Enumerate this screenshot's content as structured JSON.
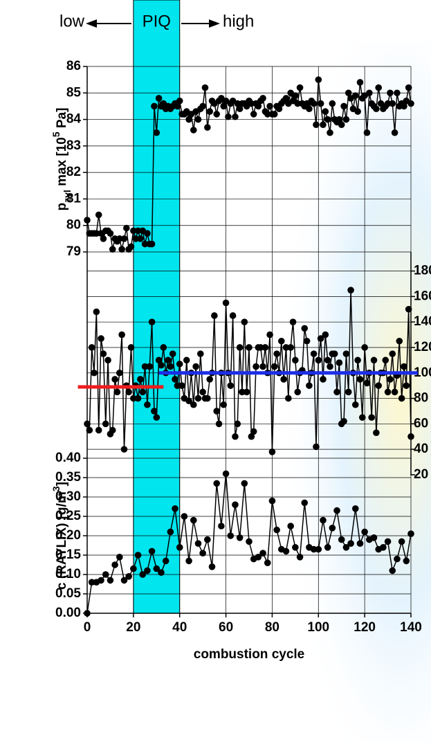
{
  "chart_data": [
    {
      "type": "line",
      "ylabel": [
        {
          "text": "p"
        },
        {
          "text": "zyl",
          "script": "sub"
        },
        {
          "text": " max [10"
        },
        {
          "text": "5",
          "script": "super"
        },
        {
          "text": " Pa]"
        }
      ],
      "annotations": [
        "low",
        "high"
      ],
      "highlight": {
        "x": [
          20,
          40
        ],
        "label": "PIQ",
        "color": "#00e5ee"
      },
      "xlim": [
        0,
        140
      ],
      "ylim": [
        79,
        86
      ],
      "yticks": [
        79,
        80,
        81,
        82,
        83,
        84,
        85,
        86
      ],
      "grid": true,
      "x": [
        0,
        1,
        2,
        3,
        4,
        5,
        6,
        7,
        8,
        9,
        10,
        11,
        12,
        13,
        14,
        15,
        16,
        17,
        18,
        19,
        20,
        21,
        22,
        23,
        24,
        25,
        26,
        27,
        28,
        29,
        30,
        31,
        32,
        33,
        34,
        35,
        36,
        37,
        38,
        39,
        40,
        41,
        42,
        43,
        44,
        45,
        46,
        47,
        48,
        49,
        50,
        51,
        52,
        53,
        54,
        55,
        56,
        57,
        58,
        59,
        60,
        61,
        62,
        63,
        64,
        65,
        66,
        67,
        68,
        69,
        70,
        71,
        72,
        73,
        74,
        75,
        76,
        77,
        78,
        79,
        80,
        81,
        82,
        83,
        84,
        85,
        86,
        87,
        88,
        89,
        90,
        91,
        92,
        93,
        94,
        95,
        96,
        97,
        98,
        99,
        100,
        101,
        102,
        103,
        104,
        105,
        106,
        107,
        108,
        109,
        110,
        111,
        112,
        113,
        114,
        115,
        116,
        117,
        118,
        119,
        120,
        121,
        122,
        123,
        124,
        125,
        126,
        127,
        128,
        129,
        130,
        131,
        132,
        133,
        134,
        135,
        136,
        137,
        138,
        139,
        140
      ],
      "series": [
        {
          "color": "#000000",
          "values": [
            80.2,
            79.7,
            79.7,
            79.7,
            79.7,
            80.4,
            79.7,
            79.5,
            79.8,
            79.8,
            79.7,
            79.1,
            79.5,
            79.4,
            79.5,
            79.1,
            79.5,
            79.9,
            79.1,
            79.2,
            79.8,
            79.5,
            79.8,
            79.5,
            79.8,
            79.3,
            79.7,
            79.3,
            79.3,
            84.5,
            83.5,
            84.8,
            84.5,
            84.6,
            84.4,
            84.5,
            84.4,
            84.5,
            84.6,
            84.5,
            84.7,
            84.2,
            84.2,
            84.3,
            84.0,
            84.2,
            83.6,
            84.3,
            84.0,
            84.4,
            84.5,
            85.2,
            83.7,
            84.3,
            84.7,
            84.6,
            84.2,
            84.7,
            84.8,
            84.5,
            84.7,
            84.1,
            84.6,
            84.7,
            84.1,
            84.6,
            84.4,
            84.6,
            84.6,
            84.5,
            84.7,
            84.6,
            84.2,
            84.6,
            84.5,
            84.7,
            84.8,
            84.3,
            84.2,
            84.5,
            84.2,
            84.2,
            84.5,
            84.4,
            84.6,
            84.7,
            84.8,
            84.6,
            85.0,
            84.7,
            84.9,
            84.6,
            85.2,
            84.6,
            84.5,
            84.6,
            84.4,
            84.7,
            84.6,
            83.8,
            85.5,
            84.6,
            83.8,
            84.3,
            84.0,
            83.5,
            84.6,
            84.0,
            83.9,
            84.0,
            83.8,
            84.5,
            84.0,
            85.0,
            84.8,
            84.4,
            84.9,
            84.3,
            85.4,
            84.8,
            84.9,
            83.5,
            85.0,
            84.6,
            84.5,
            84.4,
            85.2,
            84.6,
            84.4,
            84.5,
            84.6,
            85.0,
            84.6,
            83.5,
            85.0,
            84.5,
            84.6,
            84.5,
            84.7,
            85.2,
            84.6
          ]
        }
      ]
    },
    {
      "type": "line",
      "xlim": [
        0,
        140
      ],
      "ylim": [
        33,
        195
      ],
      "yticks": [
        20,
        40,
        60,
        80,
        100,
        120,
        140,
        160,
        180
      ],
      "y_axis_position": "right",
      "grid": true,
      "reference_lines": [
        {
          "value": 89,
          "x": [
            -4,
            33
          ],
          "color": "#ee1c1c"
        },
        {
          "value": 100,
          "x": [
            31,
            143
          ],
          "color": "#1c2ee8"
        }
      ],
      "x": [
        0,
        1,
        2,
        3,
        4,
        5,
        6,
        7,
        8,
        9,
        10,
        11,
        12,
        13,
        14,
        15,
        16,
        17,
        18,
        19,
        20,
        21,
        22,
        23,
        24,
        25,
        26,
        27,
        28,
        29,
        30,
        31,
        32,
        33,
        34,
        35,
        36,
        37,
        38,
        39,
        40,
        41,
        42,
        43,
        44,
        45,
        46,
        47,
        48,
        49,
        50,
        51,
        52,
        53,
        54,
        55,
        56,
        57,
        58,
        59,
        60,
        61,
        62,
        63,
        64,
        65,
        66,
        67,
        68,
        69,
        70,
        71,
        72,
        73,
        74,
        75,
        76,
        77,
        78,
        79,
        80,
        81,
        82,
        83,
        84,
        85,
        86,
        87,
        88,
        89,
        90,
        91,
        92,
        93,
        94,
        95,
        96,
        97,
        98,
        99,
        100,
        101,
        102,
        103,
        104,
        105,
        106,
        107,
        108,
        109,
        110,
        111,
        112,
        113,
        114,
        115,
        116,
        117,
        118,
        119,
        120,
        121,
        122,
        123,
        124,
        125,
        126,
        127,
        128,
        129,
        130,
        131,
        132,
        133,
        134,
        135,
        136,
        137,
        138,
        139,
        140
      ],
      "series": [
        {
          "color": "#000000",
          "values": [
            60,
            55,
            120,
            100,
            148,
            55,
            127,
            115,
            60,
            110,
            52,
            55,
            95,
            85,
            100,
            130,
            40,
            90,
            85,
            120,
            80,
            90,
            80,
            95,
            85,
            105,
            75,
            105,
            140,
            70,
            65,
            110,
            106,
            120,
            100,
            110,
            105,
            115,
            95,
            90,
            107,
            90,
            80,
            110,
            78,
            100,
            75,
            105,
            80,
            115,
            85,
            80,
            80,
            95,
            100,
            145,
            70,
            60,
            100,
            75,
            155,
            100,
            90,
            145,
            50,
            60,
            120,
            85,
            140,
            85,
            120,
            50,
            54,
            105,
            120,
            120,
            105,
            120,
            100,
            130,
            38,
            105,
            115,
            100,
            125,
            95,
            120,
            80,
            120,
            140,
            110,
            85,
            100,
            102,
            135,
            125,
            90,
            100,
            115,
            42,
            110,
            127,
            95,
            130,
            110,
            105,
            115,
            115,
            85,
            108,
            60,
            62,
            115,
            85,
            165,
            100,
            75,
            110,
            95,
            65,
            120,
            92,
            100,
            65,
            110,
            53,
            90,
            100,
            100,
            110,
            85,
            95,
            115,
            85,
            98,
            125,
            80,
            105,
            90,
            150,
            50
          ]
        }
      ]
    },
    {
      "type": "line",
      "ylabel": [
        {
          "text": "c (RAYLIX) [g/m"
        },
        {
          "text": "3",
          "script": "super"
        },
        {
          "text": "]"
        }
      ],
      "xlabel": "combustion cycle",
      "xlim": [
        0,
        140
      ],
      "xticks": [
        0,
        20,
        40,
        60,
        80,
        100,
        120,
        140
      ],
      "ylim": [
        0,
        0.4
      ],
      "yticks": [
        {
          "value": 0,
          "label": "0.00"
        },
        {
          "value": 0.05,
          "label": "0.05"
        },
        {
          "value": 0.1,
          "label": "0.10"
        },
        {
          "value": 0.15,
          "label": "0.15"
        },
        {
          "value": 0.2,
          "label": "0.20"
        },
        {
          "value": 0.25,
          "label": "0.25"
        },
        {
          "value": 0.3,
          "label": "0.30"
        },
        {
          "value": 0.35,
          "label": "0.35"
        },
        {
          "value": 0.4,
          "label": "0.40"
        }
      ],
      "grid": true,
      "x": [
        0,
        2,
        4,
        6,
        8,
        10,
        12,
        14,
        16,
        18,
        20,
        22,
        24,
        26,
        28,
        30,
        32,
        34,
        36,
        38,
        40,
        42,
        44,
        46,
        48,
        50,
        52,
        54,
        56,
        58,
        60,
        62,
        64,
        66,
        68,
        70,
        72,
        74,
        76,
        78,
        80,
        82,
        84,
        86,
        88,
        90,
        92,
        94,
        96,
        98,
        100,
        102,
        104,
        106,
        108,
        110,
        112,
        114,
        116,
        118,
        120,
        122,
        124,
        126,
        128,
        130,
        132,
        134,
        136,
        138,
        140
      ],
      "series": [
        {
          "color": "#000000",
          "values": [
            0.0,
            0.08,
            0.08,
            0.085,
            0.1,
            0.085,
            0.125,
            0.145,
            0.085,
            0.095,
            0.115,
            0.15,
            0.1,
            0.11,
            0.16,
            0.115,
            0.105,
            0.135,
            0.21,
            0.27,
            0.17,
            0.25,
            0.135,
            0.24,
            0.18,
            0.155,
            0.19,
            0.12,
            0.335,
            0.225,
            0.36,
            0.2,
            0.28,
            0.195,
            0.335,
            0.185,
            0.14,
            0.145,
            0.155,
            0.13,
            0.29,
            0.215,
            0.165,
            0.16,
            0.225,
            0.17,
            0.145,
            0.285,
            0.17,
            0.165,
            0.165,
            0.24,
            0.17,
            0.22,
            0.265,
            0.19,
            0.17,
            0.18,
            0.27,
            0.18,
            0.21,
            0.19,
            0.195,
            0.165,
            0.17,
            0.185,
            0.11,
            0.14,
            0.185,
            0.135,
            0.205
          ]
        }
      ]
    }
  ]
}
